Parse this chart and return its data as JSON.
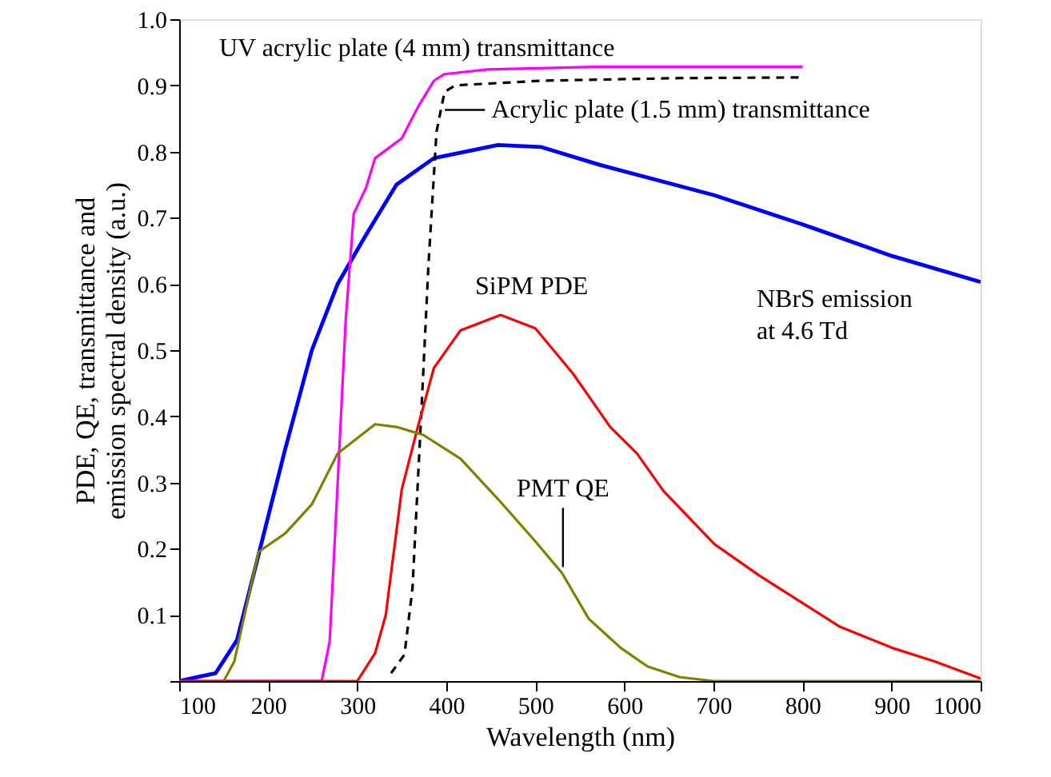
{
  "chart_data": {
    "type": "line",
    "xlabel": "Wavelength (nm)",
    "ylabel": "PDE, QE, transmittance and\nemission spectral density (a.u.)",
    "xlim": [
      100,
      1000
    ],
    "xticks": [
      100,
      200,
      300,
      400,
      500,
      600,
      700,
      800,
      900,
      1000
    ],
    "ylim": [
      0,
      1
    ],
    "yticks": [
      {
        "value": 0,
        "label": null
      },
      0.1,
      0.2,
      0.3,
      0.4,
      0.5,
      0.6,
      0.7,
      0.8,
      0.9,
      {
        "value": 1,
        "label": "1.0"
      }
    ],
    "grid": false,
    "marker": "none",
    "series": [
      {
        "color": "#0000ff",
        "line_style": "solid",
        "x": [
          100,
          141,
          165,
          189,
          219,
          249,
          278,
          308,
          344,
          386,
          458,
          506,
          572,
          701,
          800,
          901,
          1000
        ],
        "values": [
          0,
          0.012,
          0.062,
          0.19,
          0.35,
          0.5,
          0.6,
          0.67,
          0.75,
          0.79,
          0.81,
          0.807,
          0.78,
          0.734,
          0.69,
          0.642,
          0.603
        ]
      },
      {
        "color": "#ff00ff",
        "line_style": "solid",
        "x": [
          100,
          260,
          269,
          278,
          287,
          296,
          310,
          320,
          350,
          368,
          386,
          398,
          446,
          566,
          800
        ],
        "values": [
          0,
          0,
          0.06,
          0.3,
          0.545,
          0.706,
          0.746,
          0.79,
          0.82,
          0.867,
          0.907,
          0.917,
          0.924,
          0.928,
          0.928
        ]
      },
      {
        "color": "#000000",
        "line_style": "dashed",
        "x": [
          338,
          353,
          362,
          371,
          380,
          389,
          398,
          410,
          506,
          662,
          800
        ],
        "values": [
          0.012,
          0.04,
          0.14,
          0.38,
          0.63,
          0.83,
          0.89,
          0.9,
          0.907,
          0.911,
          0.912
        ]
      },
      {
        "color": "#ff0000",
        "line_style": "solid",
        "x": [
          100,
          300,
          320,
          332,
          350,
          368,
          386,
          416,
          461,
          500,
          542,
          584,
          614,
          644,
          701,
          752,
          800,
          842,
          901,
          948,
          1000
        ],
        "values": [
          0,
          0,
          0.042,
          0.1,
          0.29,
          0.384,
          0.473,
          0.53,
          0.553,
          0.533,
          0.465,
          0.384,
          0.344,
          0.287,
          0.207,
          0.159,
          0.118,
          0.082,
          0.05,
          0.03,
          0.004
        ]
      },
      {
        "color": "#808000",
        "line_style": "solid",
        "x": [
          150,
          162,
          189,
          219,
          249,
          278,
          320,
          344,
          374,
          416,
          458,
          500,
          530,
          560,
          596,
          626,
          662,
          700,
          800,
          1000
        ],
        "values": [
          0,
          0.03,
          0.195,
          0.223,
          0.267,
          0.344,
          0.388,
          0.384,
          0.372,
          0.336,
          0.275,
          0.211,
          0.163,
          0.094,
          0.05,
          0.022,
          0.006,
          0,
          0,
          0
        ]
      }
    ],
    "annotations": [
      "UV acrylic plate (4 mm) transmittance",
      {
        "text": "Acrylic plate (1.5 mm) transmittance",
        "x": 393,
        "y": 0.863
      },
      "SiPM PDE",
      {
        "text": "PMT QE",
        "x": 531,
        "y": 0.165
      },
      "NBrS emission\nat 4.6 Td"
    ]
  }
}
